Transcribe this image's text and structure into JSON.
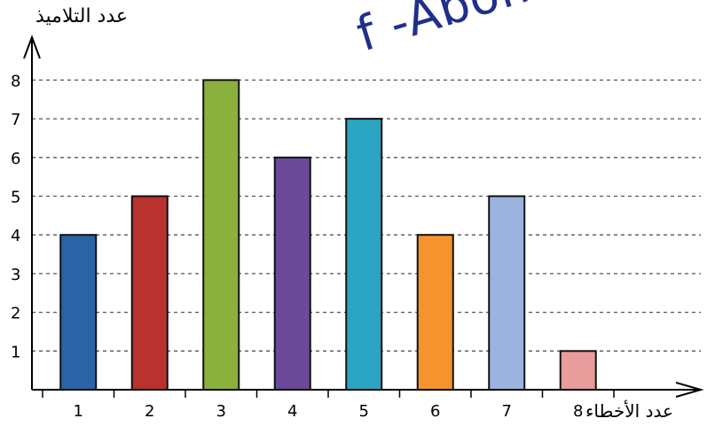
{
  "chart_data": {
    "type": "bar",
    "categories": [
      "1",
      "2",
      "3",
      "4",
      "5",
      "6",
      "7",
      "8"
    ],
    "values": [
      4,
      5,
      8,
      6,
      7,
      4,
      5,
      1
    ],
    "colors": [
      "#2a64a6",
      "#b8322f",
      "#8bb03d",
      "#6b4a99",
      "#2ba5c2",
      "#f7932d",
      "#9ab4dd",
      "#e89c9c"
    ],
    "xlabel": "عدد الأخطاء",
    "ylabel": "عدد التلاميذ",
    "yticks": [
      "1",
      "2",
      "3",
      "4",
      "5",
      "6",
      "7",
      "8"
    ],
    "ylim": [
      0,
      8
    ],
    "grid": "dashed horizontal"
  },
  "watermark": "f -Abomohamed"
}
